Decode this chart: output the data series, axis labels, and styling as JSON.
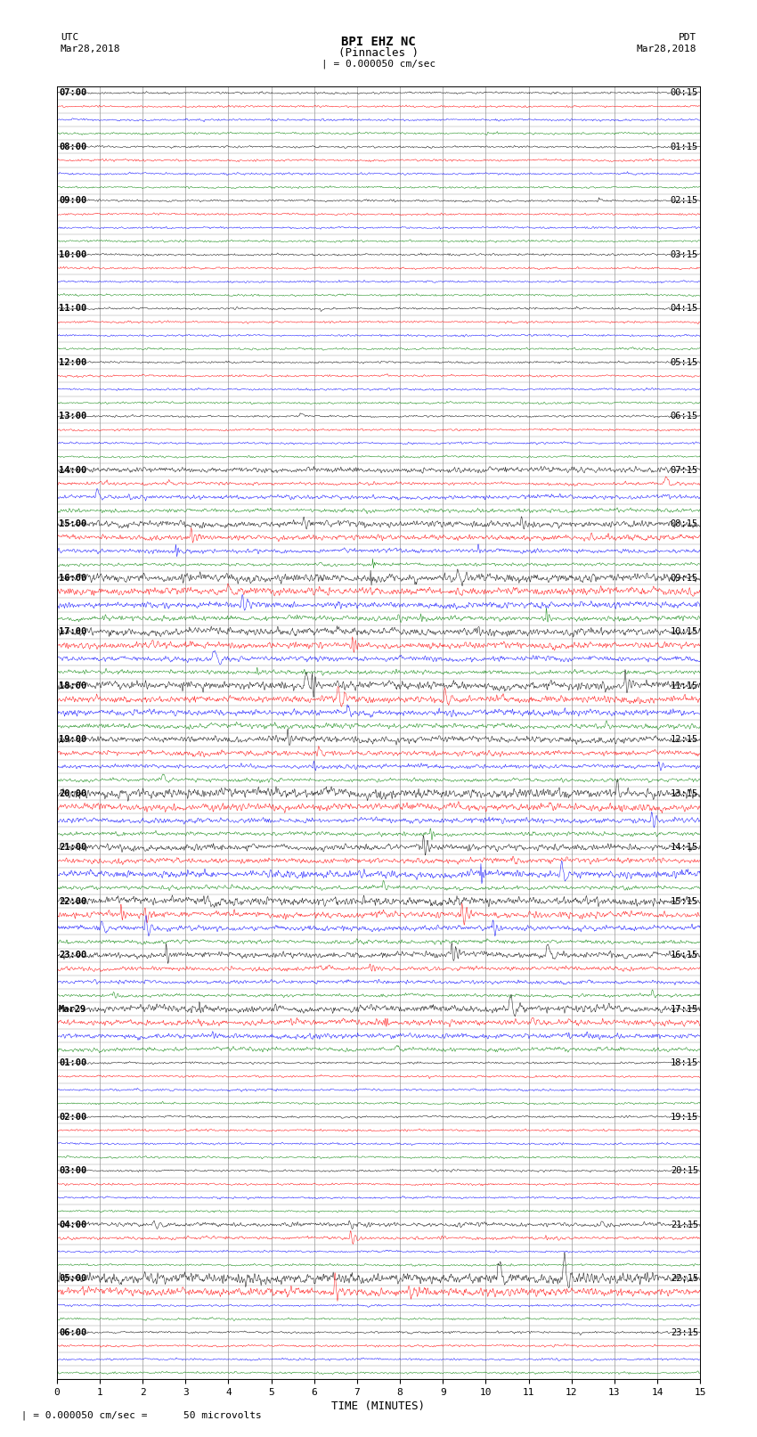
{
  "title_line1": "BPI EHZ NC",
  "title_line2": "(Pinnacles )",
  "scale_label": "| = 0.000050 cm/sec",
  "left_date_line1": "UTC",
  "left_date_line2": "Mar28,2018",
  "right_date_line1": "PDT",
  "right_date_line2": "Mar28,2018",
  "xlabel": "TIME (MINUTES)",
  "bottom_note": " | = 0.000050 cm/sec =      50 microvolts",
  "xlim": [
    0,
    15
  ],
  "xticks": [
    0,
    1,
    2,
    3,
    4,
    5,
    6,
    7,
    8,
    9,
    10,
    11,
    12,
    13,
    14,
    15
  ],
  "trace_colors": [
    "black",
    "red",
    "blue",
    "green"
  ],
  "background_color": "white",
  "grid_color": "#999999",
  "num_rows": 96,
  "noise_scale": 0.055,
  "random_seed": 42,
  "left_labels": [
    "07:00",
    "",
    "",
    "",
    "08:00",
    "",
    "",
    "",
    "09:00",
    "",
    "",
    "",
    "10:00",
    "",
    "",
    "",
    "11:00",
    "",
    "",
    "",
    "12:00",
    "",
    "",
    "",
    "13:00",
    "",
    "",
    "",
    "14:00",
    "",
    "",
    "",
    "15:00",
    "",
    "",
    "",
    "16:00",
    "",
    "",
    "",
    "17:00",
    "",
    "",
    "",
    "18:00",
    "",
    "",
    "",
    "19:00",
    "",
    "",
    "",
    "20:00",
    "",
    "",
    "",
    "21:00",
    "",
    "",
    "",
    "22:00",
    "",
    "",
    "",
    "23:00",
    "",
    "",
    "",
    "Mar29",
    "",
    "",
    "",
    "01:00",
    "",
    "",
    "",
    "02:00",
    "",
    "",
    "",
    "03:00",
    "",
    "",
    "",
    "04:00",
    "",
    "",
    "",
    "05:00",
    "",
    "",
    "",
    "06:00",
    "",
    "",
    ""
  ],
  "right_labels": [
    "00:15",
    "",
    "",
    "",
    "01:15",
    "",
    "",
    "",
    "02:15",
    "",
    "",
    "",
    "03:15",
    "",
    "",
    "",
    "04:15",
    "",
    "",
    "",
    "05:15",
    "",
    "",
    "",
    "06:15",
    "",
    "",
    "",
    "07:15",
    "",
    "",
    "",
    "08:15",
    "",
    "",
    "",
    "09:15",
    "",
    "",
    "",
    "10:15",
    "",
    "",
    "",
    "11:15",
    "",
    "",
    "",
    "12:15",
    "",
    "",
    "",
    "13:15",
    "",
    "",
    "",
    "14:15",
    "",
    "",
    "",
    "15:15",
    "",
    "",
    "",
    "16:15",
    "",
    "",
    "",
    "17:15",
    "",
    "",
    "",
    "18:15",
    "",
    "",
    "",
    "19:15",
    "",
    "",
    "",
    "20:15",
    "",
    "",
    "",
    "21:15",
    "",
    "",
    "",
    "22:15",
    "",
    "",
    "",
    "23:15",
    "",
    "",
    ""
  ]
}
